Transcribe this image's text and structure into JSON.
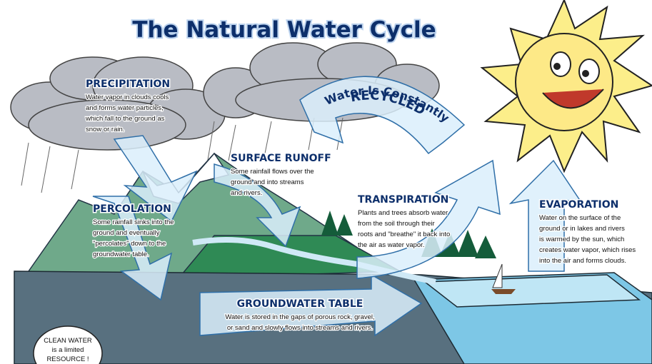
{
  "title": "The Natural Water Cycle",
  "banner": {
    "line1": "Water Is Constantly",
    "line2": "RECYCLED"
  },
  "sections": [
    {
      "heading": "PRECIPITATION",
      "lines": [
        "Water vapor in clouds cools",
        "and forms water particles,",
        "which fall to the ground as",
        "snow or rain."
      ]
    },
    {
      "heading": "SURFACE RUNOFF",
      "lines": [
        "Some rainfall flows over the",
        "ground and into streams",
        "and rivers."
      ]
    },
    {
      "heading": "PERCOLATION",
      "lines": [
        "Some rainfall sinks into the",
        "ground and eventually",
        "\"percolates\" down to the",
        "groundwater table."
      ]
    },
    {
      "heading": "TRANSPIRATION",
      "lines": [
        "Plants and trees absorb water",
        "from the soil through their",
        "roots and \"breathe\" it back into",
        "the air as water vapor."
      ]
    },
    {
      "heading": "GROUNDWATER TABLE",
      "lines": [
        "Water is stored in the gaps of porous rock, gravel,",
        "or sand and slowly flows into streams and rivers."
      ]
    },
    {
      "heading": "EVAPORATION",
      "lines": [
        "Water on the surface of the",
        "ground or in lakes and rivers",
        "is warmed by the sun, which",
        "creates water vapor, which rises",
        "into the air and forms clouds."
      ]
    }
  ],
  "callout": {
    "lines": [
      "CLEAN WATER",
      "is a limited",
      "RESOURCE !"
    ]
  }
}
